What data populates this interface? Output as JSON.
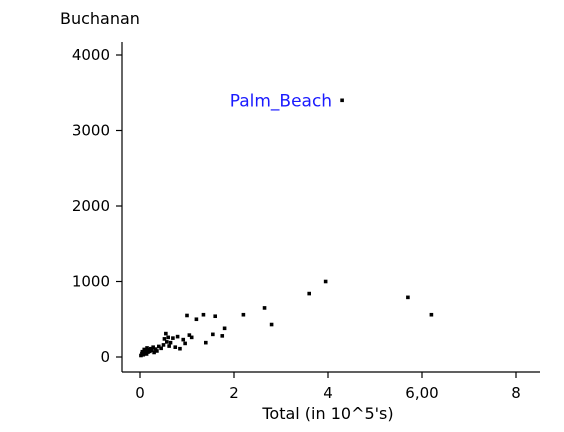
{
  "chart_data": {
    "type": "scatter",
    "title": "",
    "ylabel": "Buchanan",
    "xlabel": "Total  (in 10^5's)",
    "xlim": [
      0,
      8
    ],
    "ylim": [
      0,
      4000
    ],
    "x_ticks": [
      0,
      2,
      4,
      6,
      8
    ],
    "x_tick_labels": [
      "0",
      "2",
      "4",
      "6,00",
      "8"
    ],
    "y_ticks": [
      0,
      1000,
      2000,
      3000,
      4000
    ],
    "y_tick_labels": [
      "0",
      "1000",
      "2000",
      "3000",
      "4000"
    ],
    "grid": false,
    "marker_color": "#000000",
    "annotation_color": "#1a1aff",
    "annotations": [
      {
        "text": "Palm_Beach",
        "x": 4.3,
        "y": 3400
      }
    ],
    "points": [
      [
        0.02,
        20
      ],
      [
        0.04,
        45
      ],
      [
        0.05,
        70
      ],
      [
        0.07,
        30
      ],
      [
        0.09,
        100
      ],
      [
        0.1,
        55
      ],
      [
        0.12,
        85
      ],
      [
        0.14,
        40
      ],
      [
        0.15,
        120
      ],
      [
        0.17,
        65
      ],
      [
        0.19,
        95
      ],
      [
        0.21,
        75
      ],
      [
        0.23,
        110
      ],
      [
        0.25,
        90
      ],
      [
        0.28,
        130
      ],
      [
        0.3,
        60
      ],
      [
        0.33,
        105
      ],
      [
        0.36,
        80
      ],
      [
        0.4,
        140
      ],
      [
        0.45,
        115
      ],
      [
        0.5,
        160
      ],
      [
        0.52,
        240
      ],
      [
        0.55,
        310
      ],
      [
        0.57,
        200
      ],
      [
        0.6,
        260
      ],
      [
        0.62,
        145
      ],
      [
        0.65,
        190
      ],
      [
        0.7,
        250
      ],
      [
        0.75,
        130
      ],
      [
        0.8,
        270
      ],
      [
        0.85,
        110
      ],
      [
        0.92,
        230
      ],
      [
        0.96,
        180
      ],
      [
        1.0,
        550
      ],
      [
        1.05,
        290
      ],
      [
        1.1,
        260
      ],
      [
        1.2,
        500
      ],
      [
        1.35,
        560
      ],
      [
        1.4,
        190
      ],
      [
        1.55,
        300
      ],
      [
        1.6,
        540
      ],
      [
        1.75,
        280
      ],
      [
        1.8,
        380
      ],
      [
        2.2,
        560
      ],
      [
        2.65,
        650
      ],
      [
        2.8,
        430
      ],
      [
        3.6,
        840
      ],
      [
        3.95,
        1000
      ],
      [
        5.7,
        790
      ],
      [
        6.2,
        560
      ],
      [
        4.3,
        3400
      ]
    ]
  }
}
